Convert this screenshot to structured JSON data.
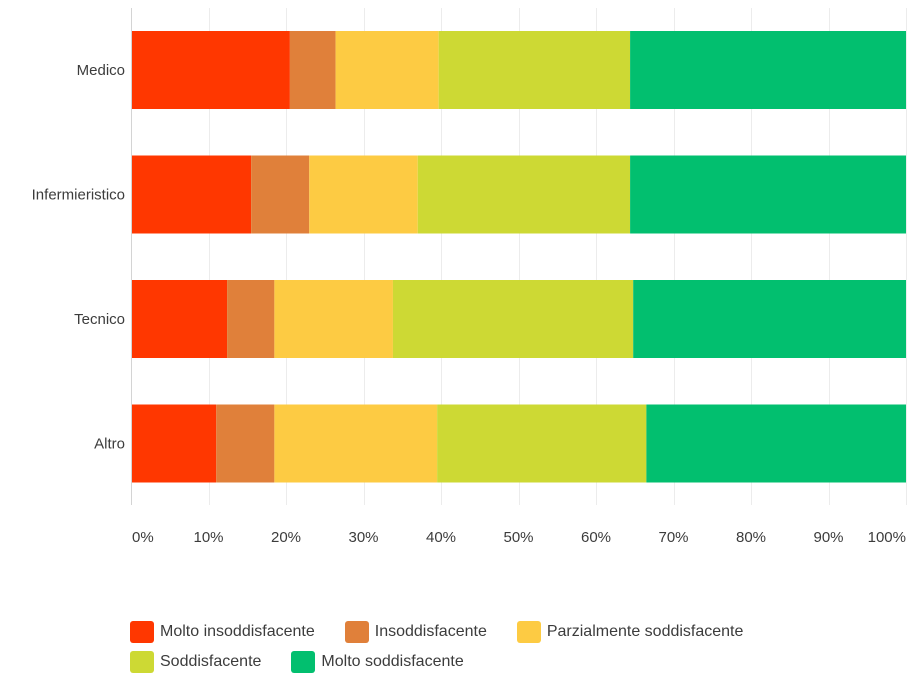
{
  "chart_data": {
    "type": "bar",
    "orientation": "horizontal",
    "stacked": true,
    "categories": [
      "Medico",
      "Infermieristico",
      "Tecnico",
      "Altro"
    ],
    "series": [
      {
        "name": "Molto insoddisfacente",
        "color": "#ff3700",
        "values": [
          20.5,
          15.5,
          12.4,
          11.0
        ]
      },
      {
        "name": "Insoddisfacente",
        "color": "#e0803a",
        "values": [
          5.9,
          7.5,
          6.1,
          7.5
        ]
      },
      {
        "name": "Parzialmente soddisfacente",
        "color": "#fdcb43",
        "values": [
          13.3,
          14.0,
          15.3,
          21.0
        ]
      },
      {
        "name": "Soddisfacente",
        "color": "#cdd934",
        "values": [
          24.7,
          27.4,
          31.0,
          27.0
        ]
      },
      {
        "name": "Molto soddisfacente",
        "color": "#02bf6f",
        "values": [
          35.6,
          35.6,
          35.2,
          33.5
        ]
      }
    ],
    "x_ticks": [
      "0%",
      "10%",
      "20%",
      "30%",
      "40%",
      "50%",
      "60%",
      "70%",
      "80%",
      "90%",
      "100%"
    ],
    "xlim": [
      0,
      100
    ],
    "grid": "vertical",
    "legend_position": "bottom"
  }
}
